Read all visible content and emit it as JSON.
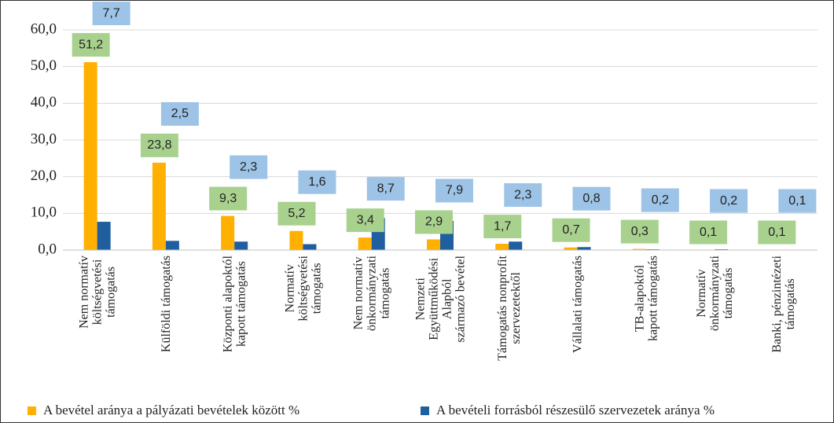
{
  "chart_data": {
    "type": "bar",
    "categories": [
      "Nem normatív\nköltségvetési\ntámogatás",
      "Külföldi támogatás",
      "Központi alapoktól\nkapott támogatás",
      "Normatív\nköltségvetési\ntámogatás",
      "Nem normatív\nönkormányzati\ntámogatás",
      "Nemzeti\nEgyüttműködési\nAlapból\nszármazó bevétel",
      "Támogatás nonprofit\nszervezetektől",
      "Vállalati támogatás",
      "TB-alapoktól\nkapott támogatás",
      "Normatív\nönkormányzati\ntámogatás",
      "Banki, pénzintézeti\ntámogatás"
    ],
    "series": [
      {
        "name": "A bevétel aránya a pályázati bevételek között %",
        "color": "#ffb000",
        "label_color": "#a9d18e",
        "values": [
          51.2,
          23.8,
          9.3,
          5.2,
          3.4,
          2.9,
          1.7,
          0.7,
          0.3,
          0.1,
          0.1
        ],
        "value_labels": [
          "51,2",
          "23,8",
          "9,3",
          "5,2",
          "3,4",
          "2,9",
          "1,7",
          "0,7",
          "0,3",
          "0,1",
          "0,1"
        ]
      },
      {
        "name": "A bevételi forrásból részesülő szervezetek aránya %",
        "color": "#1f5fa0",
        "label_color": "#9dc3e6",
        "values": [
          7.7,
          2.5,
          2.3,
          1.6,
          8.7,
          7.9,
          2.3,
          0.8,
          0.2,
          0.2,
          0.1
        ],
        "value_labels": [
          "7,7",
          "2,5",
          "2,3",
          "1,6",
          "8,7",
          "7,9",
          "2,3",
          "0,8",
          "0,2",
          "0,2",
          "0,1"
        ]
      }
    ],
    "ylim": [
      0,
      60
    ],
    "yticks": [
      {
        "value": 0,
        "label": "0,0"
      },
      {
        "value": 10,
        "label": "10,0"
      },
      {
        "value": 20,
        "label": "20,0"
      },
      {
        "value": 30,
        "label": "30,0"
      },
      {
        "value": 40,
        "label": "40,0"
      },
      {
        "value": 50,
        "label": "50,0"
      },
      {
        "value": 60,
        "label": "60,0"
      }
    ],
    "grid": true
  }
}
